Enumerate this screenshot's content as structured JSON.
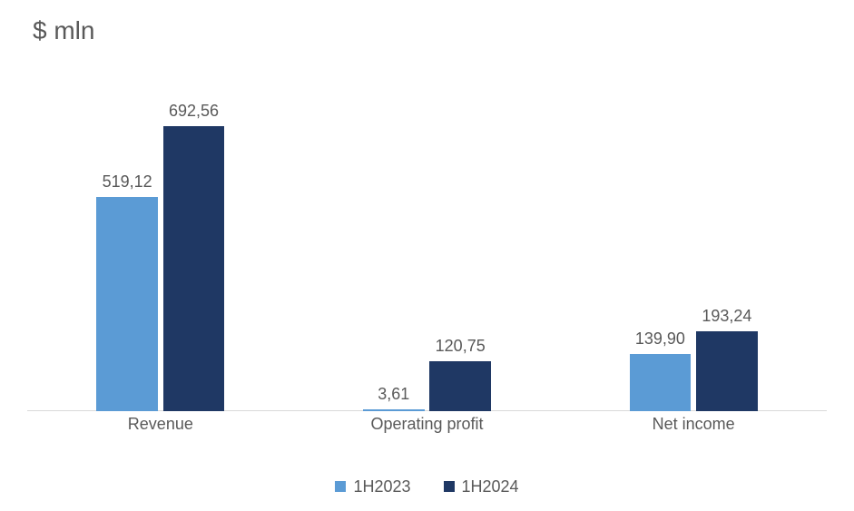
{
  "chart": {
    "type": "bar-grouped",
    "title": "$ mln",
    "title_fontsize": 28,
    "title_color": "#595959",
    "background_color": "#ffffff",
    "axis_line_color": "#d9d9d9",
    "label_color": "#595959",
    "label_fontsize": 18,
    "category_label_fontsize": 18,
    "ylim": [
      0,
      800
    ],
    "categories": [
      "Revenue",
      "Operating profit",
      "Net income"
    ],
    "series": [
      {
        "name": "1H2023",
        "color": "#5b9bd5",
        "values": [
          519.12,
          3.61,
          139.9
        ]
      },
      {
        "name": "1H2024",
        "color": "#1f3864",
        "values": [
          692.56,
          120.75,
          193.24
        ]
      }
    ],
    "value_labels": [
      [
        "519,12",
        "3,61",
        "139,90"
      ],
      [
        "692,56",
        "120,75",
        "193,24"
      ]
    ],
    "bar_width_pct": 23,
    "bar_gap_pct": 2,
    "legend": {
      "swatch_size": 12,
      "fontsize": 18
    }
  }
}
